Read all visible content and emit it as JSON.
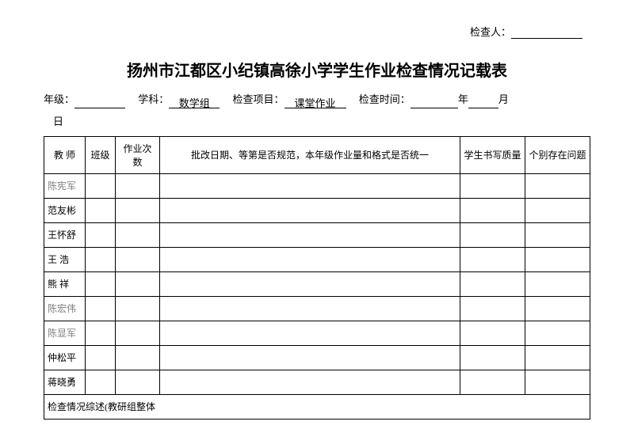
{
  "inspector_label": "检查人：",
  "title": "扬州市江都区小纪镇高徐小学学生作业检查情况记载表",
  "meta": {
    "grade_label": "年级：",
    "subject_label": "学科：",
    "subject_value": "数学组",
    "item_label": "检查项目：",
    "item_value": "课堂作业",
    "time_label": "检查时间：",
    "year_unit": "年",
    "month_unit": "月",
    "day_unit": "日"
  },
  "headers": {
    "teacher": "教  师",
    "class": "班级",
    "count": "作业次数",
    "norm": "批改日期、等第是否规范，本年级作业量和格式是否统一",
    "quality": "学生书写质量",
    "issue": "个别存在问题"
  },
  "teachers": [
    {
      "name": "陈宪军",
      "gray": true,
      "spaced": false
    },
    {
      "name": "范友彬",
      "gray": false,
      "spaced": false
    },
    {
      "name": "王怀舒",
      "gray": false,
      "spaced": false
    },
    {
      "name": "王  浩",
      "gray": false,
      "spaced": false
    },
    {
      "name": "熊  祥",
      "gray": false,
      "spaced": false
    },
    {
      "name": "陈宏伟",
      "gray": true,
      "spaced": false
    },
    {
      "name": "陈显军",
      "gray": true,
      "spaced": false
    },
    {
      "name": "仲松平",
      "gray": false,
      "spaced": false
    },
    {
      "name": "蒋晓勇",
      "gray": false,
      "spaced": false
    }
  ],
  "summary_label": "检查情况综述(教研组整体"
}
